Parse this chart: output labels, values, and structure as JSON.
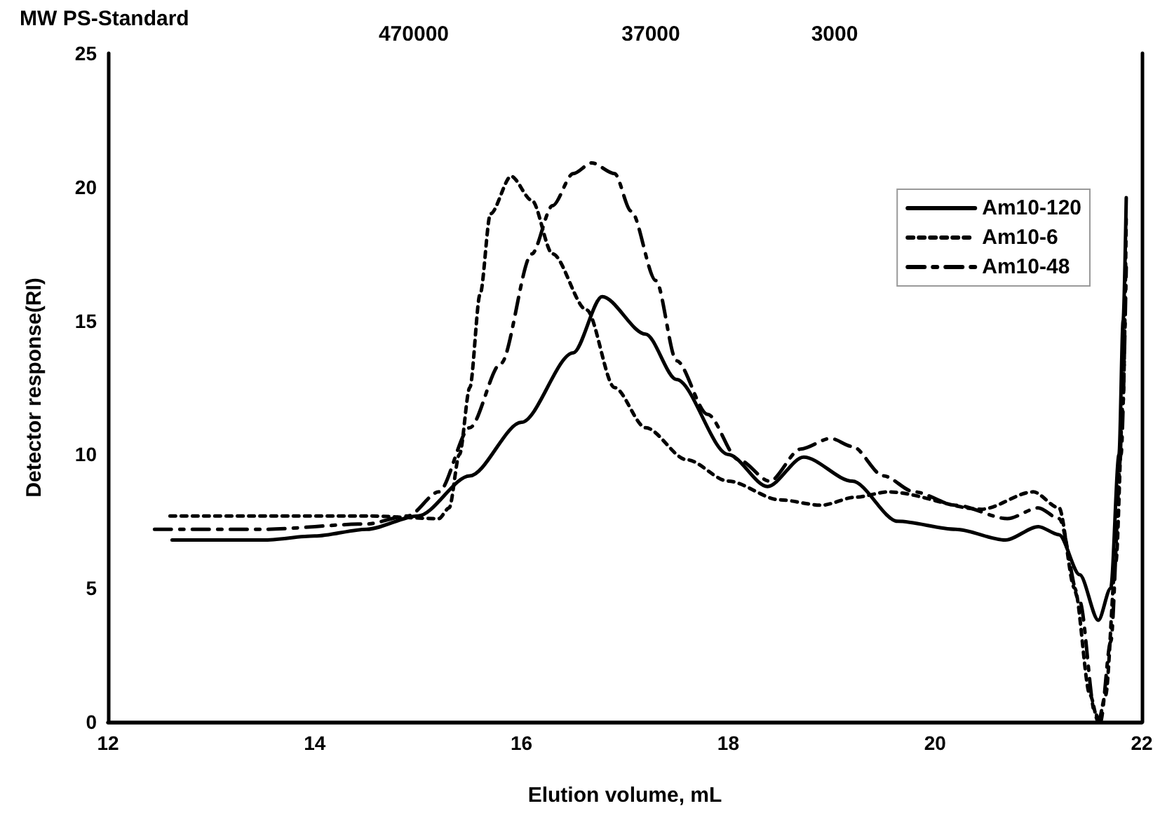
{
  "chart_data": {
    "type": "line",
    "xlabel": "Elution volume, mL",
    "ylabel": "Detector response(RI)",
    "x2label": "MW PS-Standard",
    "xlim": [
      12,
      22
    ],
    "xticks": [
      12,
      14,
      16,
      18,
      20,
      22
    ],
    "ylim": [
      0,
      25
    ],
    "yticks": [
      0,
      5,
      10,
      15,
      20,
      25
    ],
    "annotations": [
      "470000",
      "37000",
      "3000"
    ],
    "grid": false,
    "legend": "top right",
    "marker": "none",
    "series": [
      {
        "name": "Am10-120",
        "color": "#000000",
        "line_style": "solid",
        "x": [
          12.62,
          13.5,
          14,
          14.5,
          15,
          15.5,
          16,
          16.5,
          16.78,
          17.2,
          17.5,
          18,
          18.38,
          18.73,
          19.2,
          19.64,
          20.2,
          20.68,
          21.0,
          21.2,
          21.4,
          21.58,
          21.7,
          21.78,
          21.82,
          21.85
        ],
        "values": [
          6.8,
          6.8,
          6.95,
          7.2,
          7.7,
          9.2,
          11.2,
          13.8,
          15.9,
          14.5,
          12.8,
          10,
          8.8,
          9.9,
          9.0,
          7.5,
          7.2,
          6.8,
          7.3,
          7.0,
          5.5,
          3.8,
          5,
          10,
          15,
          19.6
        ]
      },
      {
        "name": "Am10-6",
        "color": "#000000",
        "line_style": "dotted",
        "x": [
          12.6,
          13.5,
          14.5,
          15.2,
          15.3,
          15.4,
          15.5,
          15.6,
          15.7,
          15.9,
          16.1,
          16.3,
          16.63,
          16.9,
          17.2,
          17.6,
          18,
          18.5,
          18.9,
          19.23,
          19.55,
          20.45,
          20.95,
          21.2,
          21.35,
          21.5,
          21.58,
          21.65,
          21.75,
          21.82,
          21.85
        ],
        "values": [
          7.7,
          7.7,
          7.7,
          7.6,
          8.0,
          10,
          12.5,
          16,
          19,
          20.4,
          19.5,
          17.5,
          15.4,
          12.5,
          11,
          9.8,
          9.0,
          8.3,
          8.1,
          8.4,
          8.6,
          7.95,
          8.6,
          8,
          5,
          1,
          0,
          1,
          6,
          12,
          19
        ]
      },
      {
        "name": "Am10-48",
        "color": "#000000",
        "line_style": "dashed",
        "x": [
          12.45,
          13.5,
          14.5,
          14.9,
          15.2,
          15.5,
          15.8,
          16.1,
          16.3,
          16.5,
          16.68,
          16.9,
          17.06,
          17.3,
          17.5,
          17.8,
          18.1,
          18.4,
          18.7,
          18.99,
          19.2,
          19.5,
          19.8,
          20.2,
          20.7,
          21.0,
          21.2,
          21.4,
          21.55,
          21.6,
          21.7,
          21.8,
          21.85
        ],
        "values": [
          7.2,
          7.2,
          7.4,
          7.7,
          8.6,
          11,
          13.4,
          17.5,
          19.3,
          20.5,
          20.9,
          20.5,
          19.1,
          16.5,
          13.5,
          11.5,
          9.8,
          9.0,
          10.2,
          10.6,
          10.3,
          9.2,
          8.6,
          8.1,
          7.6,
          8.0,
          7.6,
          4.5,
          0.3,
          0,
          3,
          10,
          17
        ]
      }
    ]
  }
}
